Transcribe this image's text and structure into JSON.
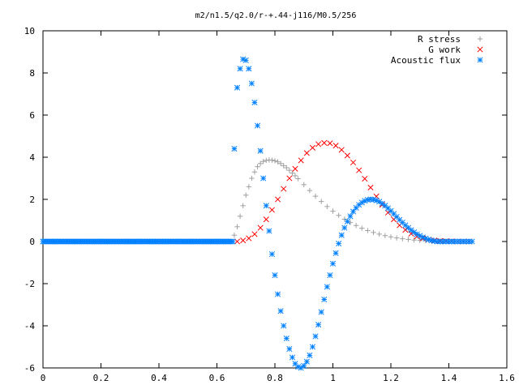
{
  "chart_data": {
    "type": "scatter",
    "title": "m2/n1.5/q2.0/r-+.44-j116/M0.5/256",
    "xlabel": "",
    "ylabel": "",
    "xlim": [
      0,
      1.6
    ],
    "ylim": [
      -6,
      10
    ],
    "xticks": [
      0,
      0.2,
      0.4,
      0.6,
      0.8,
      1,
      1.2,
      1.4,
      1.6
    ],
    "xtick_labels": [
      "0",
      "0.2",
      "0.4",
      "0.6",
      "0.8",
      "1",
      "1.2",
      "1.4",
      "1.6"
    ],
    "yticks": [
      -6,
      -4,
      -2,
      0,
      2,
      4,
      6,
      8,
      10
    ],
    "ytick_labels": [
      "-6",
      "-4",
      "-2",
      "0",
      "2",
      "4",
      "6",
      "8",
      "10"
    ],
    "grid": false,
    "legend_position": "top-right",
    "series": [
      {
        "name": "R stress",
        "marker": "plus",
        "color": "#a0a0a0",
        "x": [
          0.66,
          0.67,
          0.68,
          0.69,
          0.7,
          0.71,
          0.72,
          0.73,
          0.74,
          0.75,
          0.76,
          0.77,
          0.78,
          0.79,
          0.8,
          0.81,
          0.82,
          0.83,
          0.84,
          0.85,
          0.86,
          0.87,
          0.88,
          0.9,
          0.92,
          0.94,
          0.96,
          0.98,
          1.0,
          1.02,
          1.04,
          1.06,
          1.08,
          1.1,
          1.12,
          1.14,
          1.16,
          1.18,
          1.2,
          1.22,
          1.24,
          1.26,
          1.28,
          1.3,
          1.32,
          1.34,
          1.36,
          1.38,
          1.4,
          1.42,
          1.44,
          1.46,
          1.48
        ],
        "y": [
          0.3,
          0.7,
          1.2,
          1.7,
          2.2,
          2.6,
          3.0,
          3.3,
          3.55,
          3.7,
          3.8,
          3.85,
          3.87,
          3.86,
          3.83,
          3.78,
          3.7,
          3.6,
          3.5,
          3.38,
          3.25,
          3.12,
          2.98,
          2.7,
          2.42,
          2.15,
          1.9,
          1.66,
          1.44,
          1.24,
          1.06,
          0.9,
          0.76,
          0.63,
          0.52,
          0.43,
          0.35,
          0.28,
          0.22,
          0.17,
          0.13,
          0.1,
          0.07,
          0.05,
          0.04,
          0.03,
          0.02,
          0.01,
          0.01,
          0.0,
          0.0,
          0.0,
          0.0
        ]
      },
      {
        "name": "G work",
        "marker": "cross",
        "color": "#ff0000",
        "x": [
          0.67,
          0.69,
          0.71,
          0.73,
          0.75,
          0.77,
          0.79,
          0.81,
          0.83,
          0.85,
          0.87,
          0.89,
          0.91,
          0.93,
          0.95,
          0.97,
          0.99,
          1.01,
          1.03,
          1.05,
          1.07,
          1.09,
          1.11,
          1.13,
          1.15,
          1.17,
          1.19,
          1.21,
          1.23,
          1.25,
          1.27,
          1.29,
          1.31,
          1.33,
          1.35,
          1.37,
          1.39,
          1.41,
          1.43,
          1.45,
          1.47
        ],
        "y": [
          0.0,
          0.05,
          0.15,
          0.35,
          0.65,
          1.05,
          1.5,
          2.0,
          2.5,
          3.0,
          3.45,
          3.85,
          4.2,
          4.45,
          4.62,
          4.68,
          4.66,
          4.55,
          4.35,
          4.08,
          3.75,
          3.38,
          2.98,
          2.56,
          2.14,
          1.74,
          1.37,
          1.05,
          0.77,
          0.55,
          0.37,
          0.24,
          0.15,
          0.09,
          0.05,
          0.03,
          0.02,
          0.01,
          0.0,
          0.0,
          0.0
        ]
      },
      {
        "name": "Acoustic flux",
        "marker": "star",
        "color": "#0080ff",
        "x": [
          0.0,
          0.02,
          0.04,
          0.06,
          0.08,
          0.1,
          0.12,
          0.14,
          0.16,
          0.18,
          0.2,
          0.22,
          0.24,
          0.26,
          0.28,
          0.3,
          0.32,
          0.34,
          0.36,
          0.38,
          0.4,
          0.42,
          0.44,
          0.46,
          0.48,
          0.5,
          0.52,
          0.54,
          0.56,
          0.58,
          0.6,
          0.62,
          0.64,
          0.66,
          0.67,
          0.68,
          0.69,
          0.7,
          0.71,
          0.72,
          0.73,
          0.74,
          0.75,
          0.76,
          0.77,
          0.78,
          0.79,
          0.8,
          0.81,
          0.82,
          0.83,
          0.84,
          0.85,
          0.86,
          0.87,
          0.88,
          0.89,
          0.9,
          0.91,
          0.92,
          0.93,
          0.94,
          0.95,
          0.96,
          0.97,
          0.98,
          0.99,
          1.0,
          1.01,
          1.02,
          1.03,
          1.04,
          1.05,
          1.06,
          1.07,
          1.08,
          1.09,
          1.1,
          1.11,
          1.12,
          1.13,
          1.14,
          1.15,
          1.16,
          1.17,
          1.18,
          1.19,
          1.2,
          1.21,
          1.22,
          1.23,
          1.24,
          1.25,
          1.26,
          1.27,
          1.28,
          1.29,
          1.3,
          1.31,
          1.32,
          1.33,
          1.34,
          1.35,
          1.36,
          1.37,
          1.38,
          1.39,
          1.4,
          1.41,
          1.42,
          1.43,
          1.44,
          1.45,
          1.46,
          1.47,
          1.48
        ],
        "y": [
          0,
          0,
          0,
          0,
          0,
          0,
          0,
          0,
          0,
          0,
          0,
          0,
          0,
          0,
          0,
          0,
          0,
          0,
          0,
          0,
          0,
          0,
          0,
          0,
          0,
          0,
          0,
          0,
          0,
          0,
          0,
          0,
          0,
          4.4,
          7.3,
          8.2,
          8.65,
          8.6,
          8.2,
          7.5,
          6.6,
          5.5,
          4.3,
          3.0,
          1.7,
          0.5,
          -0.6,
          -1.6,
          -2.5,
          -3.3,
          -4.0,
          -4.6,
          -5.1,
          -5.5,
          -5.8,
          -5.95,
          -6.0,
          -5.9,
          -5.7,
          -5.4,
          -5.0,
          -4.5,
          -3.95,
          -3.35,
          -2.75,
          -2.15,
          -1.6,
          -1.05,
          -0.55,
          -0.1,
          0.3,
          0.65,
          0.95,
          1.2,
          1.42,
          1.6,
          1.74,
          1.85,
          1.93,
          1.98,
          2.0,
          1.99,
          1.95,
          1.89,
          1.8,
          1.7,
          1.58,
          1.45,
          1.31,
          1.17,
          1.03,
          0.9,
          0.77,
          0.65,
          0.54,
          0.44,
          0.35,
          0.27,
          0.2,
          0.14,
          0.09,
          0.05,
          0.02,
          0.0,
          0.0,
          0.0,
          0.0,
          0.0,
          0.0,
          0.0,
          0.0,
          0.0,
          0.0,
          0.0,
          0.0,
          0.0
        ]
      }
    ]
  }
}
